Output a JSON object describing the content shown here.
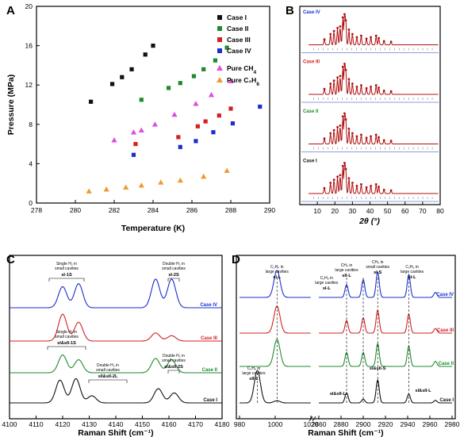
{
  "colors": {
    "case_I": "#111111",
    "case_II": "#1f8a2e",
    "case_III": "#d42020",
    "case_IV": "#1a2fcf",
    "pure_CH4": "#e04ce0",
    "pure_C2H6": "#ee9b2c",
    "xrd_fit": "#b01010"
  },
  "chart_data": [
    {
      "panel": "A",
      "type": "scatter",
      "xlabel": "Temperature (K)",
      "ylabel": "Pressure (MPa)",
      "xlim": [
        278,
        290
      ],
      "ylim": [
        0,
        20
      ],
      "xticks": [
        278,
        280,
        282,
        284,
        286,
        288,
        290
      ],
      "yticks": [
        0,
        4,
        8,
        12,
        16,
        20
      ],
      "legend_position": "right",
      "series": [
        {
          "name": "Case I",
          "marker": "square",
          "color_key": "case_I",
          "x": [
            280.8,
            281.9,
            282.4,
            282.9,
            283.6,
            284.0
          ],
          "y": [
            10.3,
            12.1,
            12.8,
            13.6,
            15.1,
            16.0
          ]
        },
        {
          "name": "Case II",
          "marker": "square",
          "color_key": "case_II",
          "x": [
            283.4,
            284.8,
            285.4,
            286.1,
            286.6,
            287.2,
            287.8
          ],
          "y": [
            10.5,
            11.7,
            12.2,
            12.9,
            13.6,
            14.5,
            15.8
          ]
        },
        {
          "name": "Case III",
          "marker": "square",
          "color_key": "case_III",
          "x": [
            283.1,
            285.3,
            286.3,
            286.7,
            287.4,
            288.0
          ],
          "y": [
            6.0,
            6.7,
            7.8,
            8.3,
            8.9,
            9.6
          ]
        },
        {
          "name": "Case IV",
          "marker": "square",
          "color_key": "case_IV",
          "x": [
            283.0,
            285.4,
            286.2,
            287.1,
            288.1,
            289.5
          ],
          "y": [
            4.9,
            5.7,
            6.3,
            7.2,
            8.1,
            9.8
          ]
        },
        {
          "name": "Pure CH<sub>4</sub>",
          "display": "Pure CH",
          "sub": "4",
          "marker": "triangle",
          "color_key": "pure_CH4",
          "x": [
            282.0,
            283.0,
            283.4,
            284.1,
            285.1,
            286.2,
            287.0,
            288.0
          ],
          "y": [
            6.4,
            7.2,
            7.4,
            8.0,
            9.0,
            10.1,
            11.0,
            12.4
          ]
        },
        {
          "name": "Pure C<sub>2</sub>H<sub>6</sub>",
          "display": "Pure C₂H",
          "sub": "6",
          "marker": "triangle",
          "color_key": "pure_C2H6",
          "x": [
            280.7,
            281.6,
            282.6,
            283.4,
            284.4,
            285.4,
            286.6,
            287.8
          ],
          "y": [
            1.2,
            1.4,
            1.6,
            1.8,
            2.1,
            2.3,
            2.7,
            3.3
          ]
        }
      ]
    },
    {
      "panel": "B",
      "type": "line",
      "xlabel": "2θ (°)",
      "xlim": [
        0,
        80
      ],
      "xticks": [
        0,
        10,
        20,
        30,
        40,
        50,
        60,
        70,
        80
      ],
      "stack_labels_top_to_bottom": [
        "Case IV",
        "Case III",
        "Case II",
        "Case I"
      ],
      "label_color_keys": [
        "case_IV",
        "case_III",
        "case_II",
        "case_I"
      ],
      "note": "Stacked powder X-ray diffraction patterns with fitted profiles and reflection tick marks"
    },
    {
      "panel": "C",
      "type": "line",
      "xlabel": "Raman Shift (cm⁻¹)",
      "xlim": [
        4100,
        4180
      ],
      "xticks": [
        4100,
        4110,
        4120,
        4130,
        4140,
        4150,
        4160,
        4170,
        4180
      ],
      "series": [
        {
          "name": "Case IV",
          "color_key": "case_IV",
          "peaks": [
            [
              4120,
              0.7
            ],
            [
              4126,
              0.8
            ],
            [
              4155,
              0.95
            ],
            [
              4161,
              0.95
            ]
          ]
        },
        {
          "name": "Case III",
          "color_key": "case_III",
          "peaks": [
            [
              4120,
              1.0
            ],
            [
              4126,
              0.7
            ],
            [
              4155,
              0.3
            ],
            [
              4161,
              0.2
            ]
          ]
        },
        {
          "name": "Case II",
          "color_key": "case_II",
          "peaks": [
            [
              4120,
              0.75
            ],
            [
              4126,
              0.55
            ],
            [
              4155,
              0.6
            ],
            [
              4161,
              0.55
            ]
          ]
        },
        {
          "name": "Case I",
          "color_key": "case_I",
          "peaks": [
            [
              4119,
              0.8
            ],
            [
              4125,
              0.85
            ],
            [
              4131,
              0.25
            ],
            [
              4156,
              0.5
            ],
            [
              4162,
              0.35
            ]
          ]
        }
      ],
      "annotations": [
        {
          "lines": [
            "Single H₂ in",
            "small cavities"
          ],
          "label": "sI-1S"
        },
        {
          "lines": [
            "Double H₂ in",
            "small cavities"
          ],
          "label": "sI-2S"
        },
        {
          "lines": [
            "Single H₂ in",
            "small cavities"
          ],
          "label": "sI&sII-1S"
        },
        {
          "lines": [
            "Double H₂ in",
            "small cavities"
          ],
          "label": "sII&sII-2L"
        },
        {
          "lines": [
            "Double H₂ in",
            "small cavities"
          ],
          "label": "sI&sII-2S"
        }
      ]
    },
    {
      "panel": "D",
      "type": "line",
      "xlabel": "Raman Shift (cm⁻¹)",
      "xticks_left": [
        980,
        1000,
        1020
      ],
      "xticks_right": [
        2860,
        2880,
        2900,
        2920,
        2940,
        2960,
        2980
      ],
      "series_labels": [
        "Case IV",
        "Case III",
        "Case II",
        "Case I"
      ],
      "annotations": [
        {
          "lines": [
            "C₂H₆ in",
            "large cavities"
          ],
          "label": "sI-L"
        },
        {
          "lines": [
            "C₂H₆ in",
            "large cavities"
          ],
          "label": "sI-L"
        },
        {
          "lines": [
            "CH₄ in",
            "large cavities"
          ],
          "label": "sII-L"
        },
        {
          "lines": [
            "CH₄ in",
            "small cavities"
          ],
          "label": "sI-S"
        },
        {
          "lines": [
            "C₂H₆ in",
            "large cavities"
          ],
          "label": "sI-L"
        },
        {
          "lines": [
            "C₂H₆ in",
            "large cavities"
          ],
          "label": "sII-L"
        }
      ],
      "case_I_peak_labels": [
        "sI&sII-L",
        "sI&sII-S",
        "sI&sII-L"
      ]
    }
  ]
}
